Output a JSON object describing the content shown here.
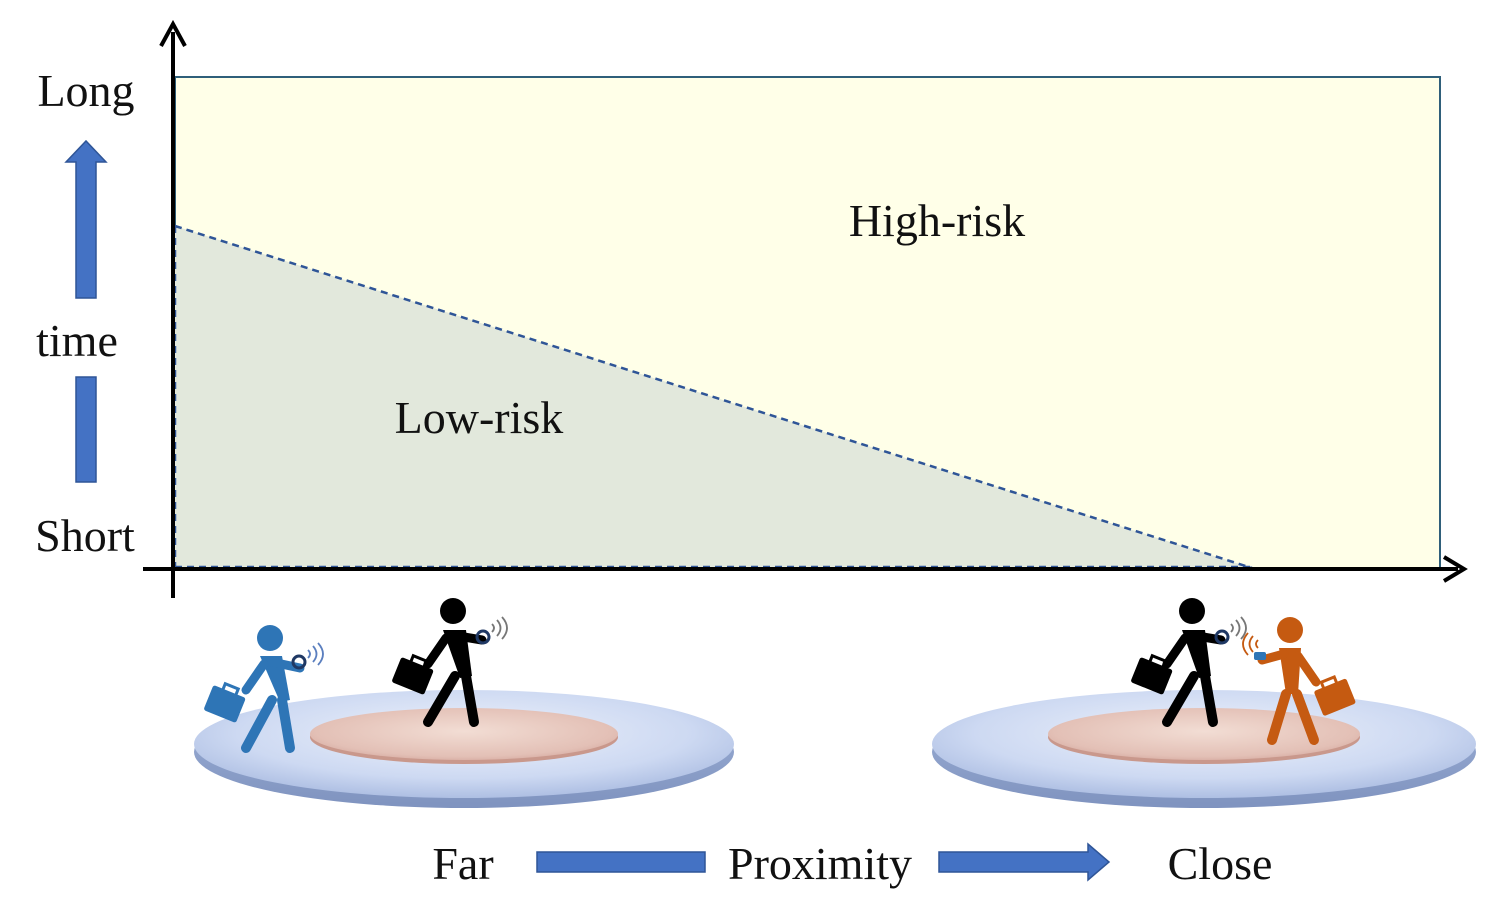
{
  "y_axis": {
    "top_label": "Long",
    "middle_label": "time",
    "bottom_label": "Short"
  },
  "zones": {
    "high_risk_label": "High-risk",
    "low_risk_label": "Low-risk"
  },
  "x_axis": {
    "left_label": "Far",
    "middle_label": "Proximity",
    "right_label": "Close"
  },
  "colors": {
    "high_risk_fill": "#ffffe8",
    "low_risk_fill": "#e2e8dc",
    "boundary_line": "#2f5597",
    "arrow_blue": "#4472c4",
    "person_black": "#000000",
    "person_blue": "#2e75b6",
    "person_orange": "#c55a11",
    "outer_zone": "#cdd9f2",
    "inner_zone": "#e8c8c0"
  },
  "icons": [
    "person-walking-icon",
    "briefcase-icon",
    "smartwatch-icon",
    "wireless-signal-icon"
  ]
}
